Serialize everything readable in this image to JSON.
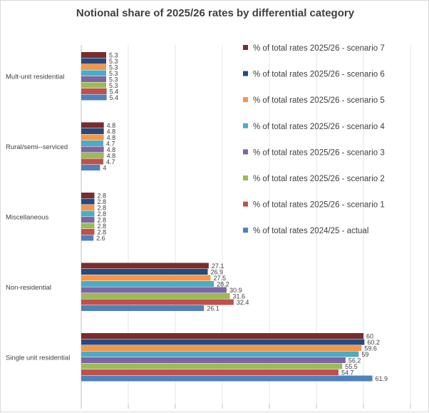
{
  "chart_data": {
    "type": "bar",
    "orientation": "horizontal",
    "title": "Notional share of 2025/26 rates by differential category",
    "categories": [
      "Mult-unit residential",
      "Rural/semi--serviced",
      "Miscellaneous",
      "Non-residential",
      "Single unit residential"
    ],
    "series": [
      {
        "name": "% of total rates 2025/26 - scenario 7",
        "color": "#7b2c2c",
        "values": [
          5.3,
          4.8,
          2.8,
          27.1,
          60
        ]
      },
      {
        "name": "% of total rates 2025/26 - scenario 6",
        "color": "#254a7f",
        "values": [
          5.3,
          4.8,
          2.8,
          26.9,
          60.2
        ]
      },
      {
        "name": "% of total rates 2025/26 - scenario 5",
        "color": "#f79646",
        "values": [
          5.3,
          4.8,
          2.8,
          27.5,
          59.6
        ]
      },
      {
        "name": "% of total rates 2025/26 - scenario 4",
        "color": "#4bacc6",
        "values": [
          5.3,
          4.7,
          2.8,
          28.2,
          59
        ]
      },
      {
        "name": "% of total rates 2025/26 - scenario 3",
        "color": "#8064a2",
        "values": [
          5.3,
          4.8,
          2.8,
          30.9,
          56.2
        ]
      },
      {
        "name": "% of total rates 2025/26 - scenario 2",
        "color": "#9bbb59",
        "values": [
          5.3,
          4.8,
          2.8,
          31.6,
          55.5
        ]
      },
      {
        "name": "% of total rates 2025/26 - scenario 1",
        "color": "#c0504d",
        "values": [
          5.4,
          4.7,
          2.8,
          32.4,
          54.7
        ]
      },
      {
        "name": "% of total rates 2024/25 - actual",
        "color": "#4f81bd",
        "values": [
          5.4,
          4,
          2.6,
          26.1,
          61.9
        ]
      }
    ],
    "xlim": [
      0,
      70
    ],
    "grid": true,
    "legend_position": "right"
  }
}
